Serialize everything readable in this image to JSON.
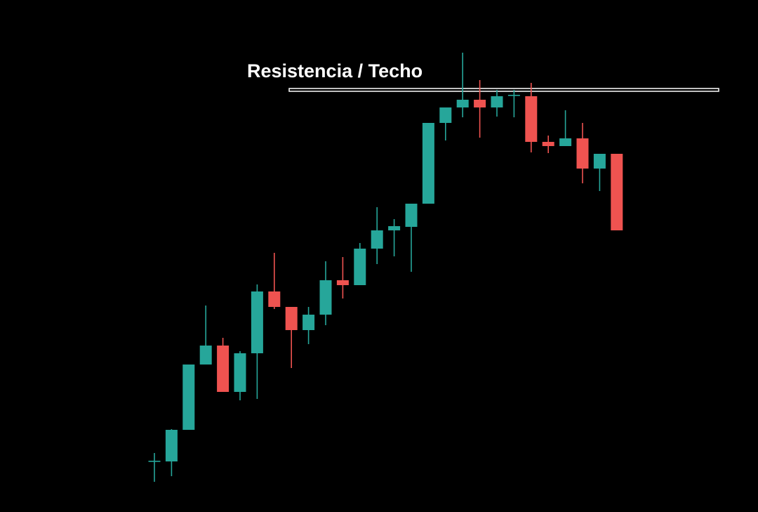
{
  "chart_data": {
    "type": "candlestick",
    "open": [
      72,
      72,
      117,
      210,
      237,
      171,
      226,
      314,
      292,
      259,
      281,
      330,
      323,
      375,
      401,
      406,
      439,
      554,
      576,
      587,
      576,
      593,
      592,
      527,
      521,
      532,
      489,
      510
    ],
    "high": [
      84,
      118,
      210,
      294,
      248,
      229,
      324,
      369,
      292,
      292,
      357,
      363,
      383,
      434,
      417,
      439,
      554,
      576,
      654,
      615,
      601,
      601,
      611,
      536,
      572,
      554,
      510,
      510
    ],
    "low": [
      43,
      51,
      117,
      210,
      171,
      159,
      161,
      289,
      205,
      239,
      266,
      304,
      323,
      353,
      364,
      342,
      439,
      529,
      562,
      533,
      563,
      562,
      512,
      511,
      521,
      468,
      457,
      401
    ],
    "close": [
      73,
      117,
      210,
      237,
      171,
      226,
      314,
      292,
      259,
      281,
      330,
      323,
      375,
      401,
      407,
      439,
      554,
      576,
      587,
      576,
      592,
      594,
      527,
      521,
      532,
      489,
      510,
      401
    ],
    "up_color": "#26a69a",
    "down_color": "#ef5350",
    "ylim": [
      0,
      729
    ],
    "resistance": {
      "label": "Resistencia / Techo",
      "value": 601,
      "color": "#ffffff"
    }
  }
}
